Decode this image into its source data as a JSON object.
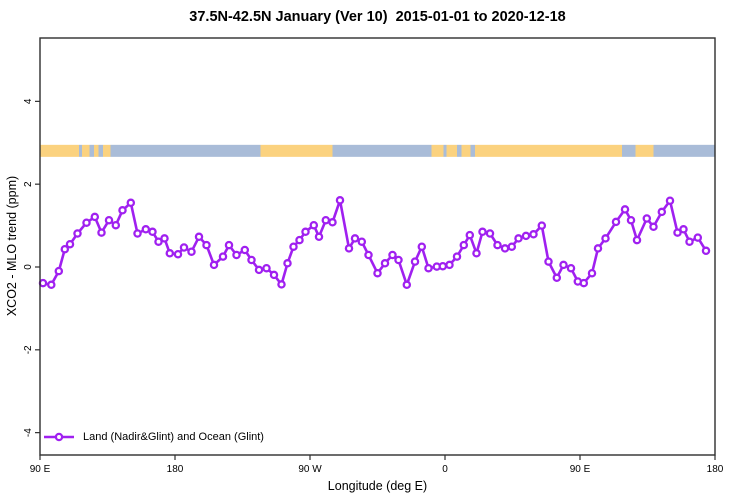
{
  "figure": {
    "title": "37.5N-42.5N January (Ver 10)  2015-01-01 to 2020-12-18"
  },
  "chart_data": {
    "type": "line",
    "title": "37.5N-42.5N January (Ver 10)  2015-01-01 to 2020-12-18",
    "xlabel": "Longitude (deg E)",
    "ylabel": "XCO2 - MLO trend (ppm)",
    "x_axis": {
      "range_deg": [
        0,
        450
      ],
      "ticks_deg": [
        0,
        90,
        180,
        270,
        360,
        450
      ],
      "tick_labels": [
        "90 E",
        "180",
        "90 W",
        "0",
        "90 E",
        "180"
      ],
      "note": "axis wraps eastward: 0 on axis = 90E longitude"
    },
    "y_axis": {
      "range": [
        -4.54,
        5.53
      ],
      "ticks": [
        -4,
        -2,
        0,
        2,
        4
      ]
    },
    "grid": false,
    "legend": {
      "label": "Land (Nadir&Glint) and Ocean (Glint)",
      "color": "#A020F0",
      "position": "bottom-left"
    },
    "surface_band": {
      "y_from": 2.66,
      "y_to": 2.95,
      "land_color": "#FBD27F",
      "ocean_color": "#A9BCD8",
      "segments": [
        {
          "from": 0,
          "to": 26,
          "type": "land"
        },
        {
          "from": 26,
          "to": 28,
          "type": "ocean"
        },
        {
          "from": 28,
          "to": 33,
          "type": "land"
        },
        {
          "from": 33,
          "to": 36,
          "type": "ocean"
        },
        {
          "from": 36,
          "to": 39,
          "type": "land"
        },
        {
          "from": 39,
          "to": 42,
          "type": "ocean"
        },
        {
          "from": 42,
          "to": 47,
          "type": "land"
        },
        {
          "from": 47,
          "to": 147,
          "type": "ocean"
        },
        {
          "from": 147,
          "to": 195,
          "type": "land"
        },
        {
          "from": 195,
          "to": 261,
          "type": "ocean"
        },
        {
          "from": 261,
          "to": 269,
          "type": "land"
        },
        {
          "from": 269,
          "to": 271,
          "type": "ocean"
        },
        {
          "from": 271,
          "to": 278,
          "type": "land"
        },
        {
          "from": 278,
          "to": 281,
          "type": "ocean"
        },
        {
          "from": 281,
          "to": 287,
          "type": "land"
        },
        {
          "from": 287,
          "to": 290,
          "type": "ocean"
        },
        {
          "from": 290,
          "to": 388,
          "type": "land"
        },
        {
          "from": 388,
          "to": 397,
          "type": "ocean"
        },
        {
          "from": 397,
          "to": 409,
          "type": "land"
        },
        {
          "from": 409,
          "to": 450,
          "type": "ocean"
        }
      ]
    },
    "series": [
      {
        "name": "Land (Nadir&Glint) and Ocean (Glint)",
        "color": "#A020F0",
        "marker": "open-circle",
        "points": [
          [
            2,
            -0.39
          ],
          [
            7.5,
            -0.43
          ],
          [
            12.5,
            -0.1
          ],
          [
            16.5,
            0.43
          ],
          [
            20,
            0.55
          ],
          [
            25,
            0.81
          ],
          [
            31,
            1.07
          ],
          [
            36.5,
            1.21
          ],
          [
            41,
            0.83
          ],
          [
            46,
            1.13
          ],
          [
            50.5,
            1.01
          ],
          [
            55,
            1.37
          ],
          [
            60.5,
            1.55
          ],
          [
            65,
            0.81
          ],
          [
            70.5,
            0.91
          ],
          [
            75,
            0.85
          ],
          [
            79,
            0.61
          ],
          [
            83,
            0.69
          ],
          [
            86.5,
            0.33
          ],
          [
            92,
            0.31
          ],
          [
            96,
            0.47
          ],
          [
            101,
            0.37
          ],
          [
            106,
            0.73
          ],
          [
            111,
            0.53
          ],
          [
            116,
            0.05
          ],
          [
            122,
            0.25
          ],
          [
            126,
            0.53
          ],
          [
            131,
            0.29
          ],
          [
            136.5,
            0.41
          ],
          [
            141,
            0.17
          ],
          [
            146,
            -0.07
          ],
          [
            151,
            -0.03
          ],
          [
            156,
            -0.19
          ],
          [
            161,
            -0.42
          ],
          [
            165,
            0.09
          ],
          [
            169,
            0.49
          ],
          [
            173,
            0.65
          ],
          [
            177,
            0.85
          ],
          [
            182.5,
            1.01
          ],
          [
            186,
            0.73
          ],
          [
            190.5,
            1.13
          ],
          [
            195,
            1.08
          ],
          [
            200,
            1.61
          ],
          [
            206,
            0.45
          ],
          [
            210,
            0.69
          ],
          [
            214.5,
            0.61
          ],
          [
            219,
            0.29
          ],
          [
            225,
            -0.15
          ],
          [
            230,
            0.09
          ],
          [
            235,
            0.29
          ],
          [
            239,
            0.17
          ],
          [
            244.5,
            -0.43
          ],
          [
            250,
            0.13
          ],
          [
            254.5,
            0.49
          ],
          [
            259,
            -0.03
          ],
          [
            264.5,
            0.01
          ],
          [
            268.5,
            0.02
          ],
          [
            273,
            0.05
          ],
          [
            278,
            0.25
          ],
          [
            282.5,
            0.53
          ],
          [
            286.5,
            0.77
          ],
          [
            291,
            0.33
          ],
          [
            295,
            0.85
          ],
          [
            300,
            0.81
          ],
          [
            305,
            0.53
          ],
          [
            310,
            0.45
          ],
          [
            314.5,
            0.49
          ],
          [
            319,
            0.69
          ],
          [
            324,
            0.75
          ],
          [
            329,
            0.79
          ],
          [
            334.5,
            1.0
          ],
          [
            339,
            0.13
          ],
          [
            344.5,
            -0.26
          ],
          [
            349,
            0.05
          ],
          [
            354,
            -0.03
          ],
          [
            358.5,
            -0.35
          ],
          [
            362.5,
            -0.39
          ],
          [
            368,
            -0.15
          ],
          [
            372,
            0.45
          ],
          [
            377,
            0.69
          ],
          [
            384,
            1.09
          ],
          [
            390,
            1.39
          ],
          [
            394,
            1.13
          ],
          [
            398,
            0.65
          ],
          [
            404.5,
            1.17
          ],
          [
            409,
            0.97
          ],
          [
            414.5,
            1.33
          ],
          [
            420,
            1.6
          ],
          [
            425,
            0.83
          ],
          [
            429,
            0.91
          ],
          [
            433,
            0.61
          ],
          [
            438.5,
            0.71
          ],
          [
            444,
            0.39
          ]
        ]
      }
    ]
  }
}
